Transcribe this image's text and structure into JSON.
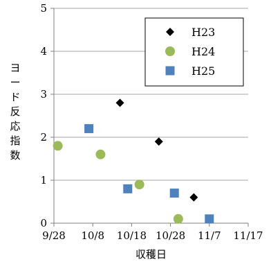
{
  "chart_data": {
    "type": "scatter",
    "title": "",
    "xlabel": "収穫日",
    "ylabel": "ヨード反応指数",
    "x_axis": {
      "kind": "date",
      "ticks": [
        "9/28",
        "10/8",
        "10/18",
        "10/28",
        "11/7",
        "11/17"
      ],
      "range": [
        "9/28",
        "11/17"
      ]
    },
    "ylim": [
      0,
      5
    ],
    "y_ticks": [
      "0",
      "1",
      "2",
      "3",
      "4",
      "5"
    ],
    "grid": "horizontal",
    "legend_position": "top-right",
    "series": [
      {
        "name": "H23",
        "marker": "diamond",
        "color": "#000000",
        "points": [
          {
            "x": "10/15",
            "y": 2.8
          },
          {
            "x": "10/25",
            "y": 1.9
          },
          {
            "x": "11/3",
            "y": 0.6
          }
        ]
      },
      {
        "name": "H24",
        "marker": "circle",
        "color": "#9BBB59",
        "points": [
          {
            "x": "9/29",
            "y": 1.8
          },
          {
            "x": "10/10",
            "y": 1.6
          },
          {
            "x": "10/20",
            "y": 0.9
          },
          {
            "x": "10/30",
            "y": 0.1
          }
        ]
      },
      {
        "name": "H25",
        "marker": "square",
        "color": "#4F81BD",
        "points": [
          {
            "x": "10/7",
            "y": 2.2
          },
          {
            "x": "10/17",
            "y": 0.8
          },
          {
            "x": "10/29",
            "y": 0.7
          },
          {
            "x": "11/7",
            "y": 0.1
          }
        ]
      }
    ]
  }
}
